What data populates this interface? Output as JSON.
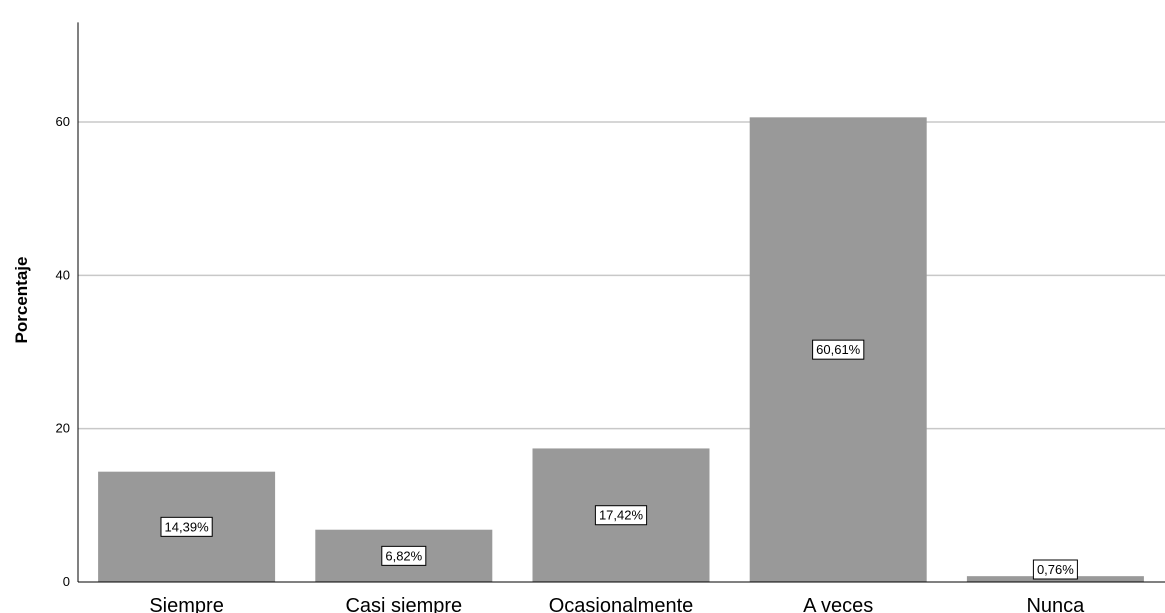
{
  "chart_data": {
    "type": "bar",
    "title": "",
    "xlabel": "",
    "ylabel": "Porcentaje",
    "categories": [
      "Siempre",
      "Casi siempre",
      "Ocasionalmente",
      "A veces",
      "Nunca"
    ],
    "values": [
      14.39,
      6.82,
      17.42,
      60.61,
      0.76
    ],
    "data_labels": [
      "14,39%",
      "6,82%",
      "17,42%",
      "60,61%",
      "0,76%"
    ],
    "ylim": [
      0,
      73
    ],
    "yticks": [
      0,
      20,
      40,
      60
    ],
    "ytick_labels": [
      "0",
      "20",
      "40",
      "60"
    ],
    "grid": true,
    "legend": "none",
    "colors": {
      "bar": "#999999",
      "grid": "#c8c8c8",
      "axis": "#000000",
      "label_box_fill": "#ffffff",
      "label_box_stroke": "#000000"
    }
  }
}
